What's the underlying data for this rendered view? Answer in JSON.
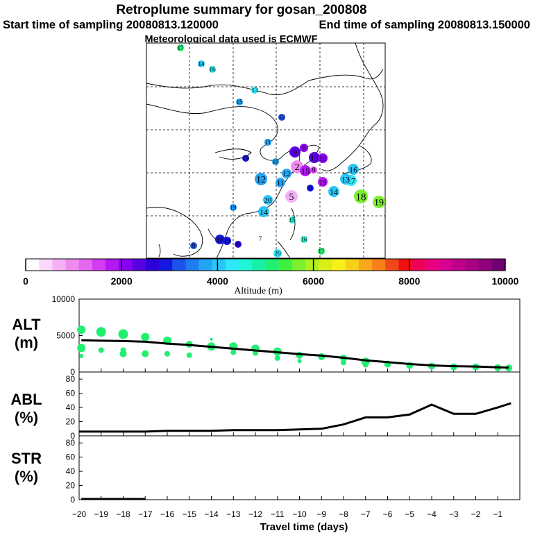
{
  "title": {
    "line1": "Retroplume summary for gosan_200808",
    "start": "Start time of sampling 20080813.120000",
    "end": "End time of sampling 20080813.150000",
    "met": "Meteorological data used is ECMWF"
  },
  "colorbar": {
    "label": "Altitude (m)",
    "tick_labels": [
      "0",
      "2000",
      "4000",
      "6000",
      "8000",
      "10000"
    ],
    "tick_values": [
      0,
      2000,
      4000,
      6000,
      8000,
      10000
    ],
    "colors": [
      "#ffffff",
      "#fbd7fb",
      "#f5b1f5",
      "#ef8bef",
      "#e566ef",
      "#d43bf0",
      "#b218f0",
      "#8a00f0",
      "#5a00e0",
      "#2c00d8",
      "#1418e0",
      "#1a52ea",
      "#1f7bf0",
      "#24a4f4",
      "#2ac6f8",
      "#2ee8f8",
      "#20f5d6",
      "#18f0a8",
      "#20ef70",
      "#40f040",
      "#7cf030",
      "#b0f020",
      "#d8f018",
      "#f8f018",
      "#f8d018",
      "#f8a818",
      "#f88018",
      "#f04818",
      "#f01010",
      "#f00058",
      "#e80080",
      "#d80090",
      "#c0008c",
      "#a80084",
      "#90007c",
      "#700070"
    ]
  },
  "map_labels": [
    {
      "t": "17",
      "c": "#20ef70",
      "s": 10
    },
    {
      "t": "14",
      "c": "#2ac6f8",
      "s": 10
    },
    {
      "t": "16",
      "c": "#2ee8f8",
      "s": 10
    },
    {
      "t": "13",
      "c": "#2ee8f8",
      "s": 10
    },
    {
      "t": "15",
      "c": "#24a4f4",
      "s": 10
    },
    {
      "t": "12",
      "c": "#1a52ea",
      "s": 10
    },
    {
      "t": "11",
      "c": "#24a4f4",
      "s": 10
    },
    {
      "t": "18",
      "c": "#1418e0",
      "s": 10
    },
    {
      "t": "10",
      "c": "#24a4f4",
      "s": 10
    },
    {
      "t": "9",
      "c": "#5a00e0",
      "s": 16
    },
    {
      "t": "6",
      "c": "#8a00f0",
      "s": 12
    },
    {
      "t": "13",
      "c": "#5a00e0",
      "s": 16
    },
    {
      "t": "10",
      "c": "#8a00f0",
      "s": 14
    },
    {
      "t": "2",
      "c": "#ef8bef",
      "s": 18
    },
    {
      "t": "15",
      "c": "#b218f0",
      "s": 16
    },
    {
      "t": "12",
      "c": "#24a4f4",
      "s": 18
    },
    {
      "t": "12",
      "c": "#24a4f4",
      "s": 14
    },
    {
      "t": "11",
      "c": "#24a4f4",
      "s": 14
    },
    {
      "t": "8",
      "c": "#1418e0",
      "s": 10
    },
    {
      "t": "16",
      "c": "#2ac6f8",
      "s": 16
    },
    {
      "t": "17",
      "c": "#2ee8f8",
      "s": 16
    },
    {
      "t": "19",
      "c": "#b218f0",
      "s": 14
    },
    {
      "t": "9",
      "c": "#d43bf0",
      "s": 10
    },
    {
      "t": "14",
      "c": "#2ac6f8",
      "s": 16
    },
    {
      "t": "13",
      "c": "#2ac6f8",
      "s": 16
    },
    {
      "t": "20",
      "c": "#2ac6f8",
      "s": 14
    },
    {
      "t": "14",
      "c": "#2ac6f8",
      "s": 16
    },
    {
      "t": "5",
      "c": "#f5b1f5",
      "s": 18
    },
    {
      "t": "18",
      "c": "#7cf030",
      "s": 20
    },
    {
      "t": "19",
      "c": "#7cf030",
      "s": 18
    },
    {
      "t": "19",
      "c": "#24a4f4",
      "s": 10
    },
    {
      "t": "15",
      "c": "#20f5d6",
      "s": 10
    },
    {
      "t": "16",
      "c": "#20f5d6",
      "s": 10
    },
    {
      "t": "16",
      "c": "#1418e0",
      "s": 14
    },
    {
      "t": "13",
      "c": "#1418e0",
      "s": 12
    },
    {
      "t": "8",
      "c": "#2c00d8",
      "s": 10
    },
    {
      "t": "7",
      "c": "#ffffff",
      "s": 10
    },
    {
      "t": "20",
      "c": "#2ee8f8",
      "s": 12
    },
    {
      "t": "17",
      "c": "#20ef70",
      "s": 10
    },
    {
      "t": "9",
      "c": "#1a52ea",
      "s": 10
    }
  ],
  "alt_panel": {
    "ylabel": "ALT",
    "unit": "(m)"
  },
  "abl_panel": {
    "ylabel": "ABL",
    "unit": "(%)"
  },
  "str_panel": {
    "ylabel": "STR",
    "unit": "(%)"
  },
  "chart_data": [
    {
      "type": "line",
      "name": "ALT",
      "ylabel": "ALT (m)",
      "ylim": [
        0,
        10000
      ],
      "yticks": [
        0,
        5000,
        10000
      ],
      "x": [
        -19.9,
        -19,
        -18,
        -17,
        -16,
        -15,
        -14,
        -13,
        -12,
        -11,
        -10,
        -9,
        -8,
        -7,
        -6,
        -5,
        -4,
        -3,
        -2,
        -1,
        -0.5
      ],
      "series": [
        {
          "name": "mean altitude",
          "values": [
            4350,
            4300,
            4250,
            4150,
            3900,
            3700,
            3450,
            3200,
            2950,
            2700,
            2450,
            2250,
            1950,
            1600,
            1350,
            1100,
            900,
            800,
            750,
            650,
            600
          ]
        }
      ],
      "scatter": {
        "name": "cluster altitude",
        "color": "#20ef70",
        "x": [
          -19.9,
          -19.9,
          -19.9,
          -19,
          -19,
          -18,
          -18,
          -18,
          -17,
          -17,
          -16,
          -16,
          -15,
          -15,
          -14,
          -14,
          -13,
          -13,
          -12,
          -12,
          -11,
          -11,
          -10,
          -10,
          -9,
          -8,
          -8,
          -7,
          -7,
          -6,
          -5,
          -4,
          -3,
          -2,
          -1,
          -0.5
        ],
        "y": [
          5800,
          3300,
          2200,
          5500,
          3000,
          5200,
          3000,
          2500,
          4800,
          2500,
          4300,
          2500,
          3800,
          2300,
          3500,
          4500,
          3500,
          2700,
          3200,
          2600,
          2800,
          1900,
          2300,
          1500,
          2100,
          1900,
          1300,
          1400,
          1000,
          1100,
          900,
          800,
          700,
          700,
          600,
          550
        ],
        "size": [
          6,
          6,
          3,
          7,
          4,
          7,
          4,
          5,
          6,
          5,
          6,
          4,
          5,
          4,
          6,
          2,
          6,
          4,
          6,
          4,
          6,
          4,
          5,
          3,
          5,
          5,
          4,
          6,
          4,
          5,
          5,
          5,
          5,
          5,
          5,
          5
        ]
      }
    },
    {
      "type": "line",
      "name": "ABL",
      "ylabel": "ABL (%)",
      "ylim": [
        0,
        90
      ],
      "yticks": [
        0,
        20,
        40,
        60,
        80
      ],
      "x": [
        -20,
        -19,
        -18,
        -17,
        -16,
        -15,
        -14,
        -13,
        -12,
        -11,
        -10,
        -9,
        -8,
        -7,
        -6,
        -5,
        -4,
        -3,
        -2,
        -1,
        -0.4
      ],
      "values": [
        6,
        6,
        6,
        6,
        7,
        7,
        7,
        8,
        8,
        8,
        9,
        10,
        16,
        26,
        26,
        30,
        44,
        31,
        31,
        40,
        46
      ]
    },
    {
      "type": "line",
      "name": "STR",
      "ylabel": "STR (%)",
      "ylim": [
        0,
        90
      ],
      "yticks": [
        0,
        20,
        40,
        60,
        80
      ],
      "x": [
        -19.9,
        -19,
        -18,
        -17
      ],
      "values": [
        1,
        1,
        1,
        1
      ]
    }
  ],
  "xaxis": {
    "label": "Travel time (days)",
    "xlim": [
      -20,
      0
    ],
    "tick_values": [
      -20,
      -19,
      -18,
      -17,
      -16,
      -15,
      -14,
      -13,
      -12,
      -11,
      -10,
      -9,
      -8,
      -7,
      -6,
      -5,
      -4,
      -3,
      -2,
      -1
    ],
    "tick_labels": [
      "−20",
      "−19",
      "−18",
      "−17",
      "−16",
      "−15",
      "−14",
      "−13",
      "−12",
      "−11",
      "−10",
      "−9",
      "−8",
      "−7",
      "−6",
      "−5",
      "−4",
      "−3",
      "−2",
      "−1"
    ]
  }
}
